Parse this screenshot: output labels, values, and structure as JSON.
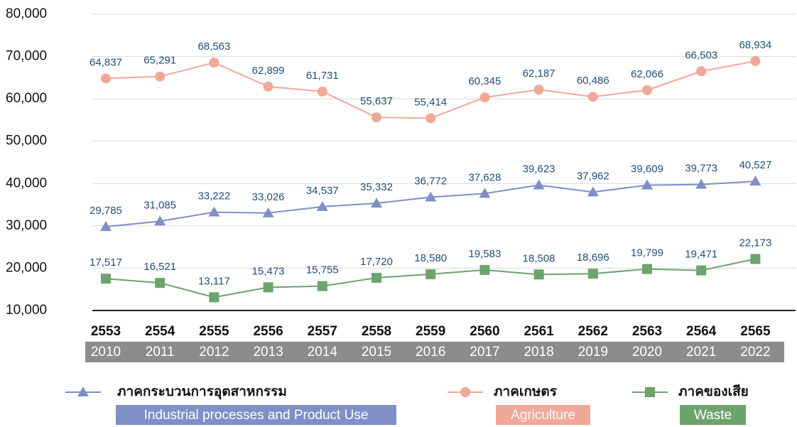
{
  "chart_data": {
    "type": "line",
    "categories": [
      "2553",
      "2554",
      "2555",
      "2556",
      "2557",
      "2558",
      "2559",
      "2560",
      "2561",
      "2562",
      "2563",
      "2564",
      "2565"
    ],
    "categories_ce": [
      "2010",
      "2011",
      "2012",
      "2013",
      "2014",
      "2015",
      "2016",
      "2017",
      "2018",
      "2019",
      "2020",
      "2021",
      "2022"
    ],
    "ylim": [
      10000,
      80000
    ],
    "yticks": [
      {
        "value": 10000,
        "label": "10,000"
      },
      {
        "value": 20000,
        "label": "20,000"
      },
      {
        "value": 30000,
        "label": "30,000"
      },
      {
        "value": 40000,
        "label": "40,000"
      },
      {
        "value": 50000,
        "label": "50,000"
      },
      {
        "value": 60000,
        "label": "60,000"
      },
      {
        "value": 70000,
        "label": "70,000"
      },
      {
        "value": 80000,
        "label": "80,000"
      }
    ],
    "grid": true,
    "series": [
      {
        "name": "ภาคกระบวนการอุตสาหกรรม",
        "name_en": "Industrial processes and Product Use",
        "color": "#7f8fc8",
        "marker": "triangle",
        "values": [
          29785,
          31085,
          33222,
          33026,
          34537,
          35332,
          36772,
          37628,
          39623,
          37962,
          39609,
          39773,
          40527
        ],
        "value_labels": [
          "29,785",
          "31,085",
          "33,222",
          "33,026",
          "34,537",
          "35,332",
          "36,772",
          "37,628",
          "39,623",
          "37,962",
          "39,609",
          "39,773",
          "40,527"
        ]
      },
      {
        "name": "ภาคเกษตร",
        "name_en": "Agriculture",
        "color": "#f0a898",
        "marker": "circle",
        "values": [
          64837,
          65291,
          68563,
          62899,
          61731,
          55637,
          55414,
          60345,
          62187,
          60486,
          62066,
          66503,
          68934
        ],
        "value_labels": [
          "64,837",
          "65,291",
          "68,563",
          "62,899",
          "61,731",
          "55,637",
          "55,414",
          "60,345",
          "62,187",
          "60,486",
          "62,066",
          "66,503",
          "68,934"
        ]
      },
      {
        "name": "ภาคของเสีย",
        "name_en": "Waste",
        "color": "#6da36d",
        "marker": "square",
        "values": [
          17517,
          16521,
          13117,
          15473,
          15755,
          17720,
          18580,
          19583,
          18508,
          18696,
          19799,
          19471,
          22173
        ],
        "value_labels": [
          "17,517",
          "16,521",
          "13,117",
          "15,473",
          "15,755",
          "17,720",
          "18,580",
          "19,583",
          "18,508",
          "18,696",
          "19,799",
          "19,471",
          "22,173"
        ]
      }
    ]
  }
}
